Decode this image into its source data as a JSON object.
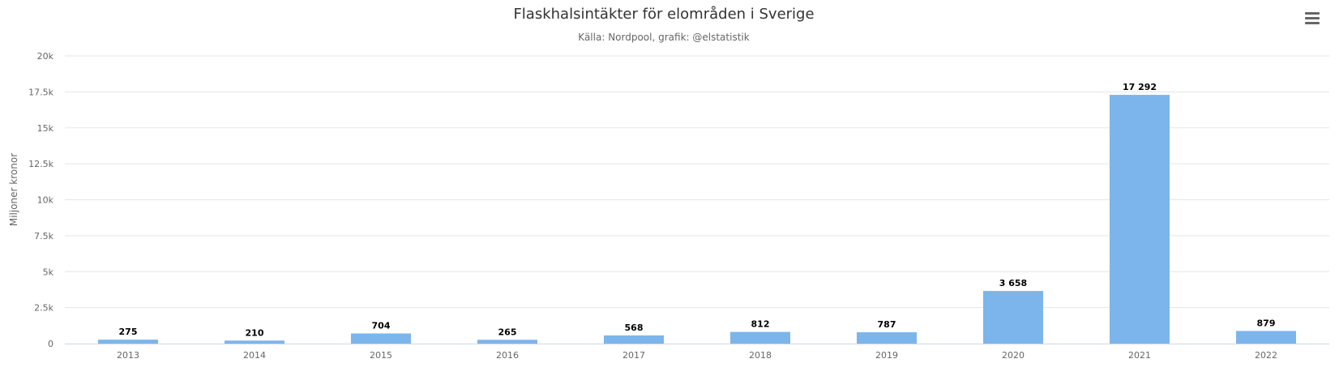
{
  "chart_data": {
    "type": "bar",
    "title": "Flaskhalsintäkter för elområden i Sverige",
    "subtitle": "Källa: Nordpool, grafik: @elstatistik",
    "xlabel": "",
    "ylabel": "Miljoner kronor",
    "categories": [
      "2013",
      "2014",
      "2015",
      "2016",
      "2017",
      "2018",
      "2019",
      "2020",
      "2021",
      "2022"
    ],
    "values": [
      275,
      210,
      704,
      265,
      568,
      812,
      787,
      3658,
      17292,
      879
    ],
    "data_labels": [
      "275",
      "210",
      "704",
      "265",
      "568",
      "812",
      "787",
      "3 658",
      "17 292",
      "879"
    ],
    "ylim": [
      0,
      20000
    ],
    "y_ticks": [
      0,
      2500,
      5000,
      7500,
      10000,
      12500,
      15000,
      17500,
      20000
    ],
    "y_tick_labels": [
      "0",
      "2.5k",
      "5k",
      "7.5k",
      "10k",
      "12.5k",
      "15k",
      "17.5k",
      "20k"
    ],
    "grid": true,
    "legend": "none",
    "colors": {
      "bar": "#7cb5ec",
      "grid": "#e6e6e6",
      "axis": "#ccd6eb",
      "title": "#333333",
      "label": "#666666"
    }
  },
  "menu": {
    "icon": "hamburger-menu-icon"
  }
}
